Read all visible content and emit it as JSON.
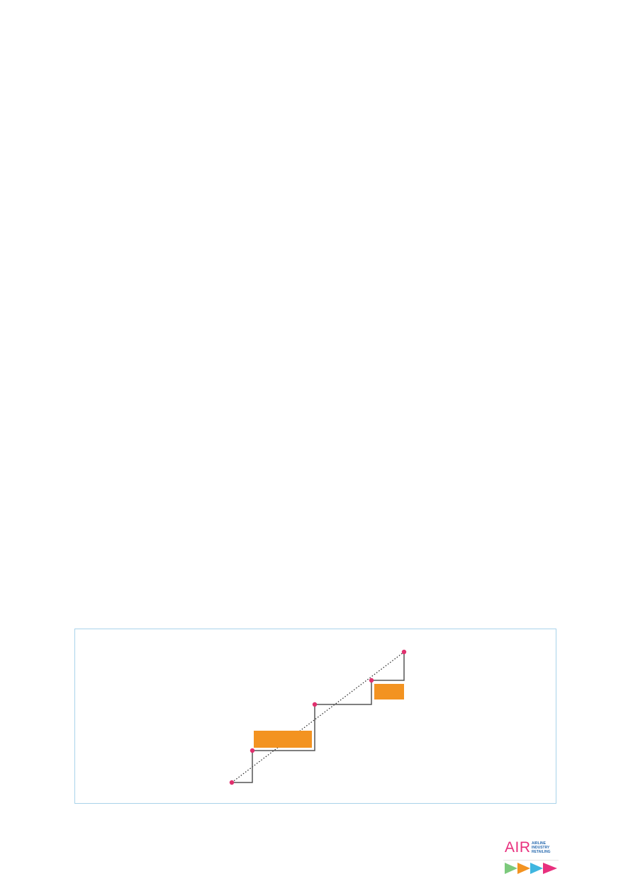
{
  "figure": {
    "border_color": "#a9d3ea",
    "step_line_color": "#555555",
    "point_color": "#e0306e",
    "bar_color": "#f39321",
    "diagonal_style": "dotted"
  },
  "logo": {
    "wordmark": "AIR",
    "tagline": [
      "AIRLINE",
      "INDUSTRY",
      "RETAILING"
    ],
    "arrow_colors": [
      "#7cc97c",
      "#f39321",
      "#3fb6e0",
      "#e8307e"
    ]
  }
}
